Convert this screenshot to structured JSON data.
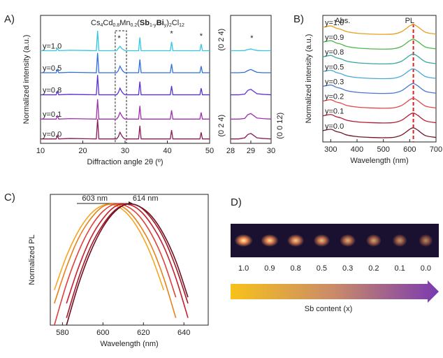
{
  "chart_data": [
    {
      "type": "line",
      "panel_label": "A)",
      "title": [
        {
          "text": "Cs"
        },
        {
          "text": "4",
          "sub": true
        },
        {
          "text": "Cd"
        },
        {
          "text": "0.8",
          "sub": true
        },
        {
          "text": "Mn"
        },
        {
          "text": "0.2",
          "sub": true
        },
        {
          "text": "("
        },
        {
          "text": "Sb",
          "bold": true
        },
        {
          "text": "1-y",
          "sub": true
        },
        {
          "text": "Bi",
          "bold": true
        },
        {
          "text": "y",
          "sub": true
        },
        {
          "text": ")"
        },
        {
          "text": "2",
          "sub": true
        },
        {
          "text": "Cl"
        },
        {
          "text": "12",
          "sub": true
        }
      ],
      "xlabel": "Diffraction angle 2θ  (º)",
      "ylabel": "Normalized intensity (a.u.)",
      "xlim": [
        10,
        50
      ],
      "xticks": [
        10,
        20,
        30,
        40,
        50
      ],
      "ylim": [
        0,
        5.8
      ],
      "x": [
        10,
        13.7,
        14,
        14.3,
        17,
        23.2,
        23.5,
        23.8,
        28,
        28.4,
        28.8,
        29.2,
        29.6,
        30,
        33.2,
        33.5,
        33.8,
        40.7,
        41,
        41.3,
        47.7,
        48,
        48.3,
        50
      ],
      "series": [
        {
          "name": "y=0.0",
          "color": "#8a1a5a",
          "values": [
            0.2,
            0.2,
            0.35,
            0.2,
            0.22,
            0.2,
            1.1,
            0.2,
            0.2,
            0.3,
            0.5,
            0.35,
            0.25,
            0.2,
            0.2,
            0.8,
            0.2,
            0.2,
            0.6,
            0.2,
            0.2,
            0.5,
            0.2,
            0.2
          ]
        },
        {
          "name": "y=0.1",
          "color": "#a030b0",
          "values": [
            1.1,
            1.1,
            1.25,
            1.1,
            1.12,
            1.1,
            2.0,
            1.1,
            1.1,
            1.2,
            1.4,
            1.25,
            1.15,
            1.1,
            1.1,
            1.7,
            1.1,
            1.1,
            1.5,
            1.1,
            1.1,
            1.4,
            1.1,
            1.1
          ]
        },
        {
          "name": "y=0.8",
          "color": "#5a30d8",
          "values": [
            2.2,
            2.2,
            2.35,
            2.2,
            2.22,
            2.2,
            3.1,
            2.2,
            2.2,
            2.3,
            2.5,
            2.35,
            2.25,
            2.2,
            2.2,
            2.8,
            2.2,
            2.2,
            2.6,
            2.2,
            2.2,
            2.5,
            2.2,
            2.2
          ]
        },
        {
          "name": "y=0.5",
          "color": "#2f70e0",
          "values": [
            3.2,
            3.2,
            3.35,
            3.2,
            3.22,
            3.2,
            4.1,
            3.2,
            3.2,
            3.3,
            3.5,
            3.35,
            3.25,
            3.2,
            3.2,
            3.8,
            3.2,
            3.2,
            3.6,
            3.2,
            3.2,
            3.5,
            3.2,
            3.2
          ]
        },
        {
          "name": "y=1.0",
          "color": "#30c8e8",
          "values": [
            4.2,
            4.2,
            4.3,
            4.2,
            4.22,
            4.2,
            5.1,
            4.2,
            4.2,
            4.3,
            4.4,
            4.3,
            4.25,
            4.2,
            4.2,
            4.8,
            4.2,
            4.2,
            4.6,
            4.2,
            4.2,
            4.5,
            4.2,
            4.2
          ]
        }
      ],
      "annotations": [
        {
          "text": "*",
          "x": 28.6,
          "y": 4.75
        },
        {
          "text": "*",
          "x": 41,
          "y": 4.95
        },
        {
          "text": "*",
          "x": 48,
          "y": 4.85
        }
      ]
    },
    {
      "type": "line",
      "xlim": [
        28,
        30
      ],
      "xticks": [
        28,
        29,
        30
      ],
      "ylim": [
        0,
        5.8
      ],
      "x": [
        28,
        28.4,
        28.7,
        28.85,
        29,
        29.15,
        29.3,
        29.6,
        30
      ],
      "series": [
        {
          "color": "#8a1a5a",
          "values": [
            0.2,
            0.2,
            0.25,
            0.4,
            0.45,
            0.35,
            0.25,
            0.22,
            0.2
          ]
        },
        {
          "color": "#a030b0",
          "values": [
            1.1,
            1.1,
            1.13,
            1.3,
            1.35,
            1.25,
            1.15,
            1.12,
            1.1
          ]
        },
        {
          "color": "#5a30d8",
          "values": [
            2.2,
            2.2,
            2.23,
            2.4,
            2.45,
            2.35,
            2.25,
            2.22,
            2.2
          ]
        },
        {
          "color": "#2f70e0",
          "values": [
            3.2,
            3.2,
            3.22,
            3.3,
            3.35,
            3.28,
            3.22,
            3.2,
            3.2
          ]
        },
        {
          "color": "#30c8e8",
          "values": [
            4.2,
            4.2,
            4.21,
            4.25,
            4.28,
            4.24,
            4.21,
            4.2,
            4.2
          ]
        }
      ],
      "annotations": [
        {
          "text": "(0 2 4)",
          "x": 27.55,
          "y": 4.7,
          "vertical": true
        },
        {
          "text": "*",
          "x": 29.05,
          "y": 4.75
        },
        {
          "text": "(0 2 4)",
          "x": 27.55,
          "y": 0.8,
          "vertical": true
        },
        {
          "text": "(0 0 12)",
          "x": 30.45,
          "y": 0.8,
          "vertical": true
        }
      ]
    },
    {
      "type": "line",
      "panel_label": "B)",
      "smooth": true,
      "xlabel": "Wavelength (nm)",
      "ylabel": "Normalized intensity (a.u.)",
      "xlim": [
        270,
        700
      ],
      "xticks": [
        300,
        400,
        500,
        600,
        700
      ],
      "ylim": [
        0,
        9
      ],
      "x": [
        270,
        300,
        320,
        340,
        360,
        400,
        450,
        500,
        540,
        570,
        600,
        614,
        630,
        660,
        700
      ],
      "series": [
        {
          "name": "y=0.0",
          "color": "#701828",
          "values": [
            0.8,
            0.9,
            0.75,
            0.65,
            0.5,
            0.38,
            0.32,
            0.3,
            0.33,
            0.5,
            0.9,
            1.0,
            0.85,
            0.45,
            0.32
          ]
        },
        {
          "name": "y=0.1",
          "color": "#b01c30",
          "values": [
            1.85,
            1.95,
            1.8,
            1.7,
            1.55,
            1.43,
            1.37,
            1.35,
            1.38,
            1.55,
            1.95,
            2.05,
            1.9,
            1.5,
            1.37
          ]
        },
        {
          "name": "y=0.2",
          "color": "#e04848",
          "values": [
            2.9,
            3.0,
            2.85,
            2.75,
            2.6,
            2.48,
            2.42,
            2.4,
            2.43,
            2.6,
            3.0,
            3.1,
            2.95,
            2.55,
            2.42
          ]
        },
        {
          "name": "y=0.3",
          "color": "#4a78d0",
          "values": [
            3.95,
            4.05,
            3.9,
            3.8,
            3.65,
            3.53,
            3.47,
            3.45,
            3.48,
            3.65,
            4.05,
            4.15,
            4.0,
            3.6,
            3.47
          ]
        },
        {
          "name": "y=0.5",
          "color": "#4aa8d8",
          "values": [
            5.0,
            5.1,
            4.95,
            4.85,
            4.7,
            4.58,
            4.52,
            4.5,
            4.53,
            4.7,
            5.1,
            5.2,
            5.05,
            4.65,
            4.52
          ]
        },
        {
          "name": "y=0.8",
          "color": "#3aa8a0",
          "values": [
            6.05,
            6.15,
            6.0,
            5.9,
            5.75,
            5.63,
            5.57,
            5.55,
            5.58,
            5.75,
            6.15,
            6.25,
            6.1,
            5.7,
            5.57
          ]
        },
        {
          "name": "y=0.9",
          "color": "#50b848",
          "values": [
            7.1,
            7.2,
            7.05,
            6.95,
            6.8,
            6.68,
            6.62,
            6.6,
            6.63,
            6.8,
            7.2,
            7.3,
            7.15,
            6.75,
            6.62
          ]
        },
        {
          "name": "y=1.0",
          "color": "#e8a020",
          "values": [
            8.15,
            8.25,
            8.1,
            8.0,
            7.85,
            7.73,
            7.67,
            7.65,
            7.68,
            7.85,
            8.25,
            8.35,
            8.2,
            7.8,
            7.67
          ]
        }
      ],
      "reference_line": {
        "x": 614,
        "color": "#e02020"
      },
      "annotations": [
        {
          "text": "Abs.",
          "x": 345,
          "y": 8.6
        },
        {
          "text": "PL",
          "x": 600,
          "y": 8.6
        }
      ]
    },
    {
      "type": "line",
      "panel_label": "C)",
      "smooth": true,
      "xlabel": "Wavelength (nm)",
      "ylabel": "Normalized PL",
      "xlim": [
        574,
        652
      ],
      "xticks": [
        580,
        600,
        620,
        640
      ],
      "ylim": [
        0,
        1.08
      ],
      "x": [
        576,
        582,
        588,
        594,
        600,
        606,
        612,
        618,
        624,
        630,
        636,
        642,
        648
      ],
      "series": [
        {
          "color": "#f5a623",
          "values": [
            0.29,
            0.57,
            0.78,
            0.92,
            0.99,
            0.99,
            0.92,
            0.78,
            0.57,
            0.29,
            null,
            null,
            null
          ]
        },
        {
          "color": "#e8801a",
          "values": [
            0.18,
            0.48,
            0.72,
            0.88,
            0.98,
            1.0,
            0.95,
            0.83,
            0.65,
            0.39,
            0.06,
            null,
            null
          ]
        },
        {
          "color": "#e0403a",
          "values": [
            0.0,
            0.34,
            0.61,
            0.81,
            0.94,
            1.0,
            0.98,
            0.9,
            0.75,
            0.53,
            0.23,
            null,
            null
          ]
        },
        {
          "color": "#c8202a",
          "values": [
            null,
            0.18,
            0.48,
            0.72,
            0.88,
            0.98,
            1.0,
            0.95,
            0.83,
            0.65,
            0.39,
            0.06,
            null
          ]
        },
        {
          "color": "#a01828",
          "values": [
            null,
            0.06,
            0.39,
            0.65,
            0.83,
            0.95,
            1.0,
            0.98,
            0.88,
            0.72,
            0.48,
            0.18,
            null
          ]
        },
        {
          "color": "#6e1020",
          "values": [
            null,
            0.0,
            0.34,
            0.61,
            0.81,
            0.94,
            1.0,
            0.98,
            0.9,
            0.75,
            0.53,
            0.23,
            null
          ]
        }
      ],
      "annotations": [
        {
          "text": "603 nm",
          "x": 596,
          "y": 1.045
        },
        {
          "text": "614 nm",
          "x": 621,
          "y": 1.045
        }
      ]
    }
  ],
  "panel_d": {
    "panel_label": "D)",
    "samples": [
      "1.0",
      "0.9",
      "0.8",
      "0.5",
      "0.3",
      "0.2",
      "0.1",
      "0.0"
    ],
    "axis_label": "Sb content (x)"
  }
}
